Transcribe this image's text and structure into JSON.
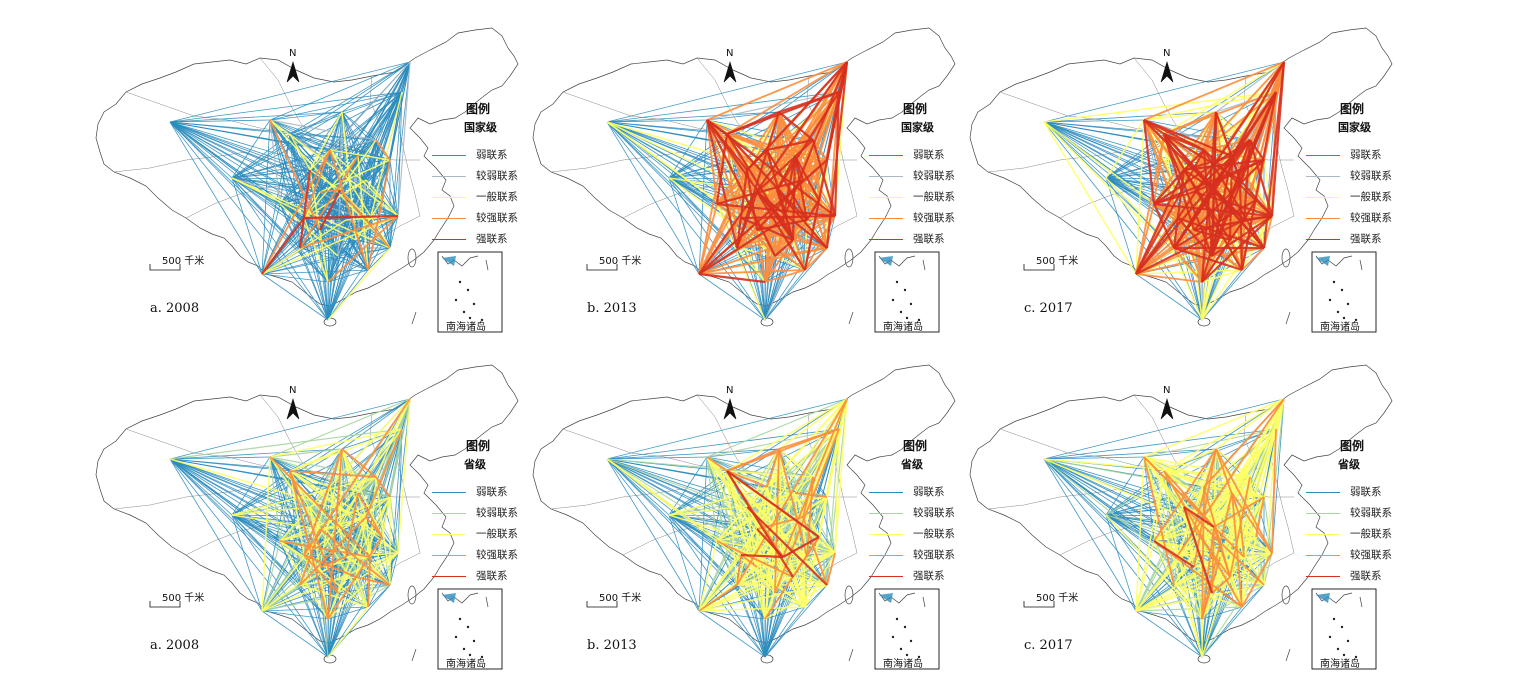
{
  "legend": {
    "title": "图例",
    "categories": [
      {
        "label": "弱联系",
        "color": "#2b8cbe"
      },
      {
        "label": "较弱联系",
        "color": "#a6d4a0"
      },
      {
        "label": "一般联系",
        "color": "#ffff66"
      },
      {
        "label": "较强联系",
        "color": "#fd8d3c"
      },
      {
        "label": "强联系",
        "color": "#d7301f"
      }
    ],
    "national_row_colors": [
      "#2b8cbe",
      "#a9b8c4",
      "#ffff66",
      "#fd8d3c",
      "#d7301f"
    ],
    "provincial_row_colors": [
      "#2b8cbe",
      "#a6d4a0",
      "#ffff66",
      "#fd8d3c",
      "#d7301f"
    ]
  },
  "rows": [
    {
      "level": "国家级",
      "panels": [
        {
          "label": "a. 2008",
          "strength_mix": [
            0.82,
            0.04,
            0.09,
            0.04,
            0.01
          ]
        },
        {
          "label": "b. 2013",
          "strength_mix": [
            0.22,
            0.07,
            0.15,
            0.38,
            0.18
          ]
        },
        {
          "label": "c. 2017",
          "strength_mix": [
            0.12,
            0.05,
            0.18,
            0.42,
            0.23
          ]
        }
      ]
    },
    {
      "level": "省级",
      "panels": [
        {
          "label": "a. 2008",
          "strength_mix": [
            0.55,
            0.22,
            0.18,
            0.05,
            0.0
          ]
        },
        {
          "label": "b. 2013",
          "strength_mix": [
            0.3,
            0.3,
            0.3,
            0.08,
            0.02
          ]
        },
        {
          "label": "c. 2017",
          "strength_mix": [
            0.28,
            0.28,
            0.34,
            0.08,
            0.02
          ]
        }
      ]
    }
  ],
  "scale_bar_label": "500 千米",
  "north_arrow_label": "N",
  "inset_label": "南海诸岛"
}
